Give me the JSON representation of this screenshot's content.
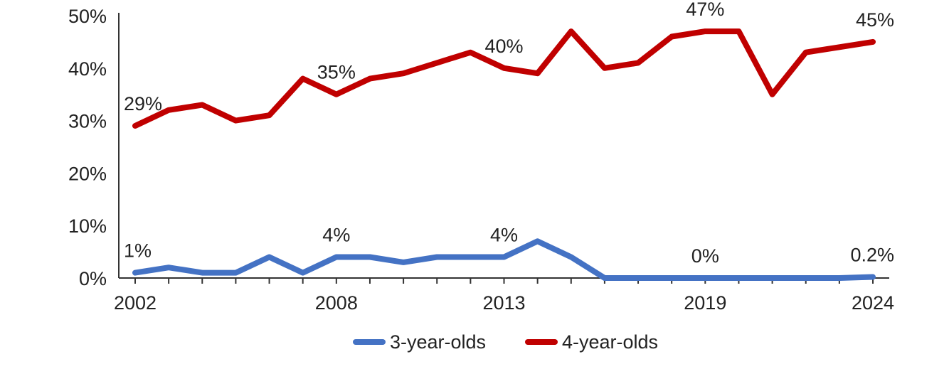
{
  "chart_data": {
    "type": "line",
    "x": [
      2002,
      2003,
      2004,
      2005,
      2006,
      2007,
      2008,
      2009,
      2010,
      2011,
      2012,
      2013,
      2014,
      2015,
      2016,
      2017,
      2018,
      2019,
      2020,
      2021,
      2022,
      2023,
      2024
    ],
    "x_tick_labels": [
      "2002",
      "2008",
      "2013",
      "2019",
      "2024"
    ],
    "y_tick_labels": [
      "0%",
      "10%",
      "20%",
      "30%",
      "40%",
      "50%"
    ],
    "ylim": [
      0,
      50
    ],
    "series": [
      {
        "name": "3-year-olds",
        "color": "#4472c4",
        "values": [
          1,
          2,
          1,
          1,
          4,
          1,
          4,
          4,
          3,
          4,
          4,
          4,
          7,
          4,
          0,
          0,
          0,
          0,
          0,
          0,
          0,
          0,
          0.2
        ],
        "labels": [
          {
            "year": 2002,
            "text": "1%"
          },
          {
            "year": 2008,
            "text": "4%"
          },
          {
            "year": 2013,
            "text": "4%"
          },
          {
            "year": 2019,
            "text": "0%"
          },
          {
            "year": 2024,
            "text": "0.2%"
          }
        ]
      },
      {
        "name": "4-year-olds",
        "color": "#c00000",
        "values": [
          29,
          32,
          33,
          30,
          31,
          38,
          35,
          38,
          39,
          41,
          43,
          40,
          39,
          47,
          40,
          41,
          46,
          47,
          47,
          35,
          43,
          44,
          45
        ],
        "labels": [
          {
            "year": 2002,
            "text": "29%"
          },
          {
            "year": 2008,
            "text": "35%"
          },
          {
            "year": 2013,
            "text": "40%"
          },
          {
            "year": 2019,
            "text": "47%"
          },
          {
            "year": 2024,
            "text": "45%"
          }
        ]
      }
    ],
    "legend_position": "bottom",
    "grid": false,
    "xlabel": "",
    "ylabel": ""
  }
}
